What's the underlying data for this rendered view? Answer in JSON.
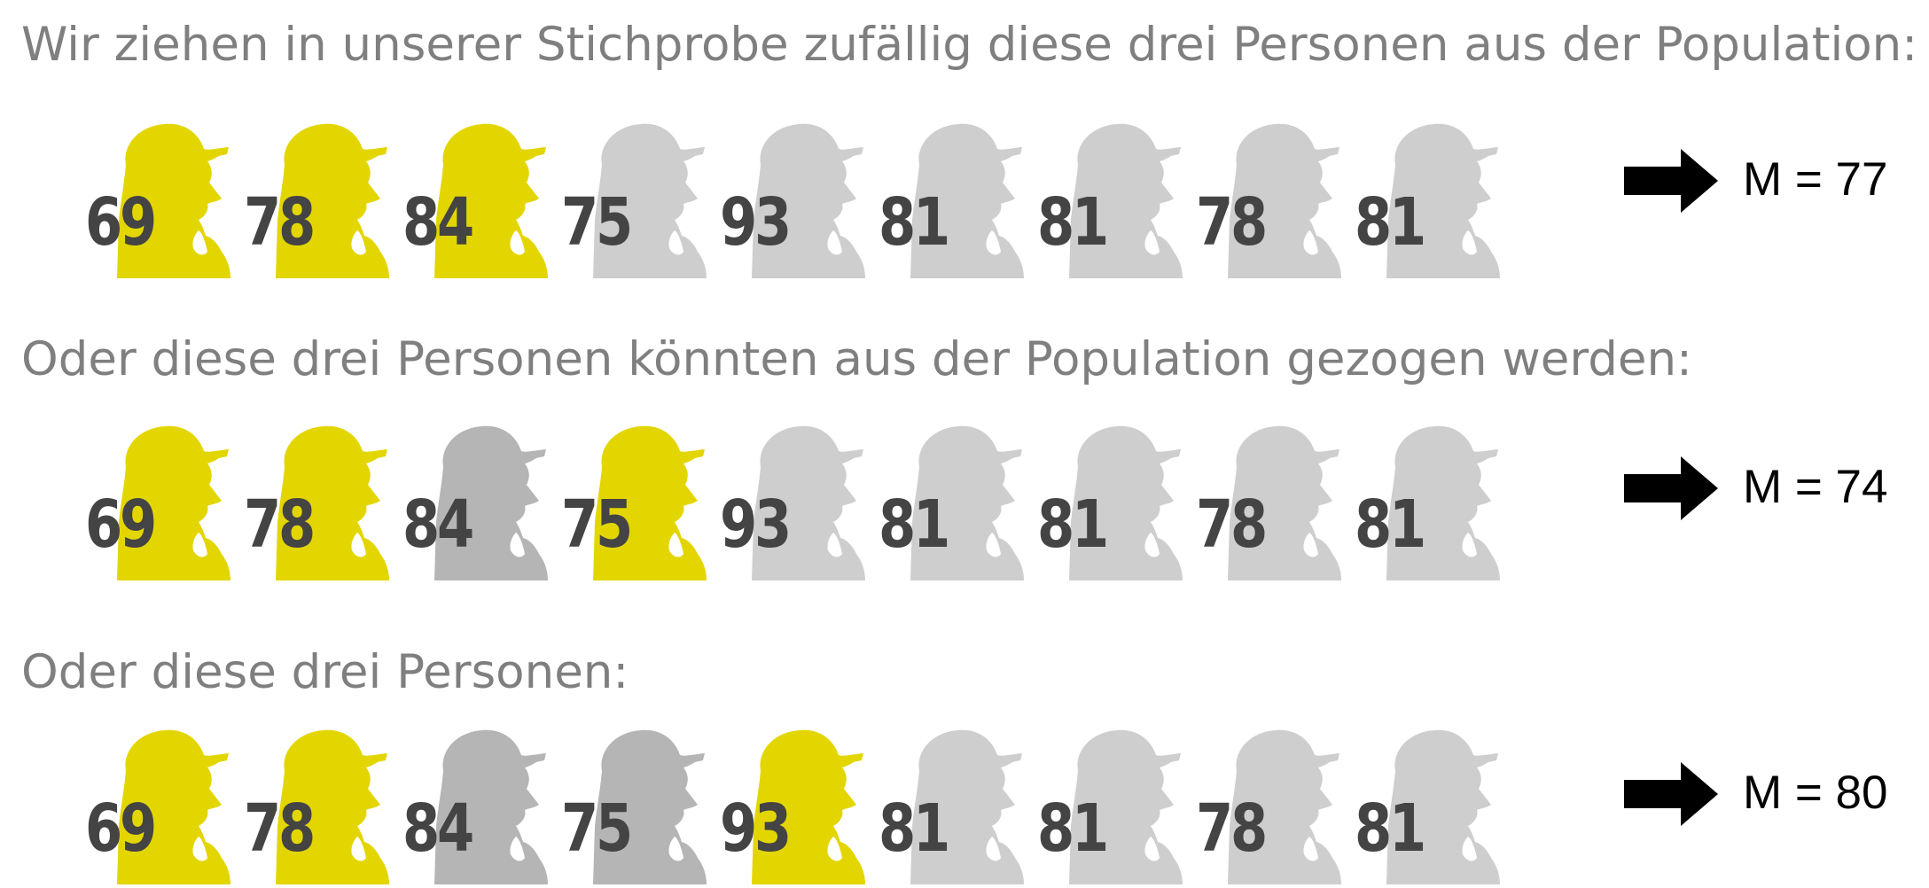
{
  "colors": {
    "selected": "#e3d600",
    "unselected": "#cecece",
    "unselected_dark": "#b5b5b5",
    "number": "#444444",
    "heading": "#7f7f7f"
  },
  "icons": {
    "person": "person-with-hat-icon",
    "arrow": "right-arrow-icon"
  },
  "sections": [
    {
      "heading": "Wir ziehen in unserer Stichprobe zufällig diese drei Personen aus der Population:",
      "mean_label": "M = 77",
      "people": [
        {
          "value": "69",
          "state": "selected"
        },
        {
          "value": "78",
          "state": "selected"
        },
        {
          "value": "84",
          "state": "selected"
        },
        {
          "value": "75",
          "state": "unselected"
        },
        {
          "value": "93",
          "state": "unselected"
        },
        {
          "value": "81",
          "state": "unselected"
        },
        {
          "value": "81",
          "state": "unselected"
        },
        {
          "value": "78",
          "state": "unselected"
        },
        {
          "value": "81",
          "state": "unselected"
        }
      ]
    },
    {
      "heading": "Oder diese drei Personen könnten aus der Population gezogen werden:",
      "mean_label": "M = 74",
      "people": [
        {
          "value": "69",
          "state": "selected"
        },
        {
          "value": "78",
          "state": "selected"
        },
        {
          "value": "84",
          "state": "previous"
        },
        {
          "value": "75",
          "state": "selected"
        },
        {
          "value": "93",
          "state": "unselected"
        },
        {
          "value": "81",
          "state": "unselected"
        },
        {
          "value": "81",
          "state": "unselected"
        },
        {
          "value": "78",
          "state": "unselected"
        },
        {
          "value": "81",
          "state": "unselected"
        }
      ]
    },
    {
      "heading": "Oder diese drei Personen:",
      "mean_label": "M = 80",
      "people": [
        {
          "value": "69",
          "state": "selected"
        },
        {
          "value": "78",
          "state": "selected"
        },
        {
          "value": "84",
          "state": "previous"
        },
        {
          "value": "75",
          "state": "previous"
        },
        {
          "value": "93",
          "state": "selected"
        },
        {
          "value": "81",
          "state": "unselected"
        },
        {
          "value": "81",
          "state": "unselected"
        },
        {
          "value": "78",
          "state": "unselected"
        },
        {
          "value": "81",
          "state": "unselected"
        }
      ]
    }
  ]
}
